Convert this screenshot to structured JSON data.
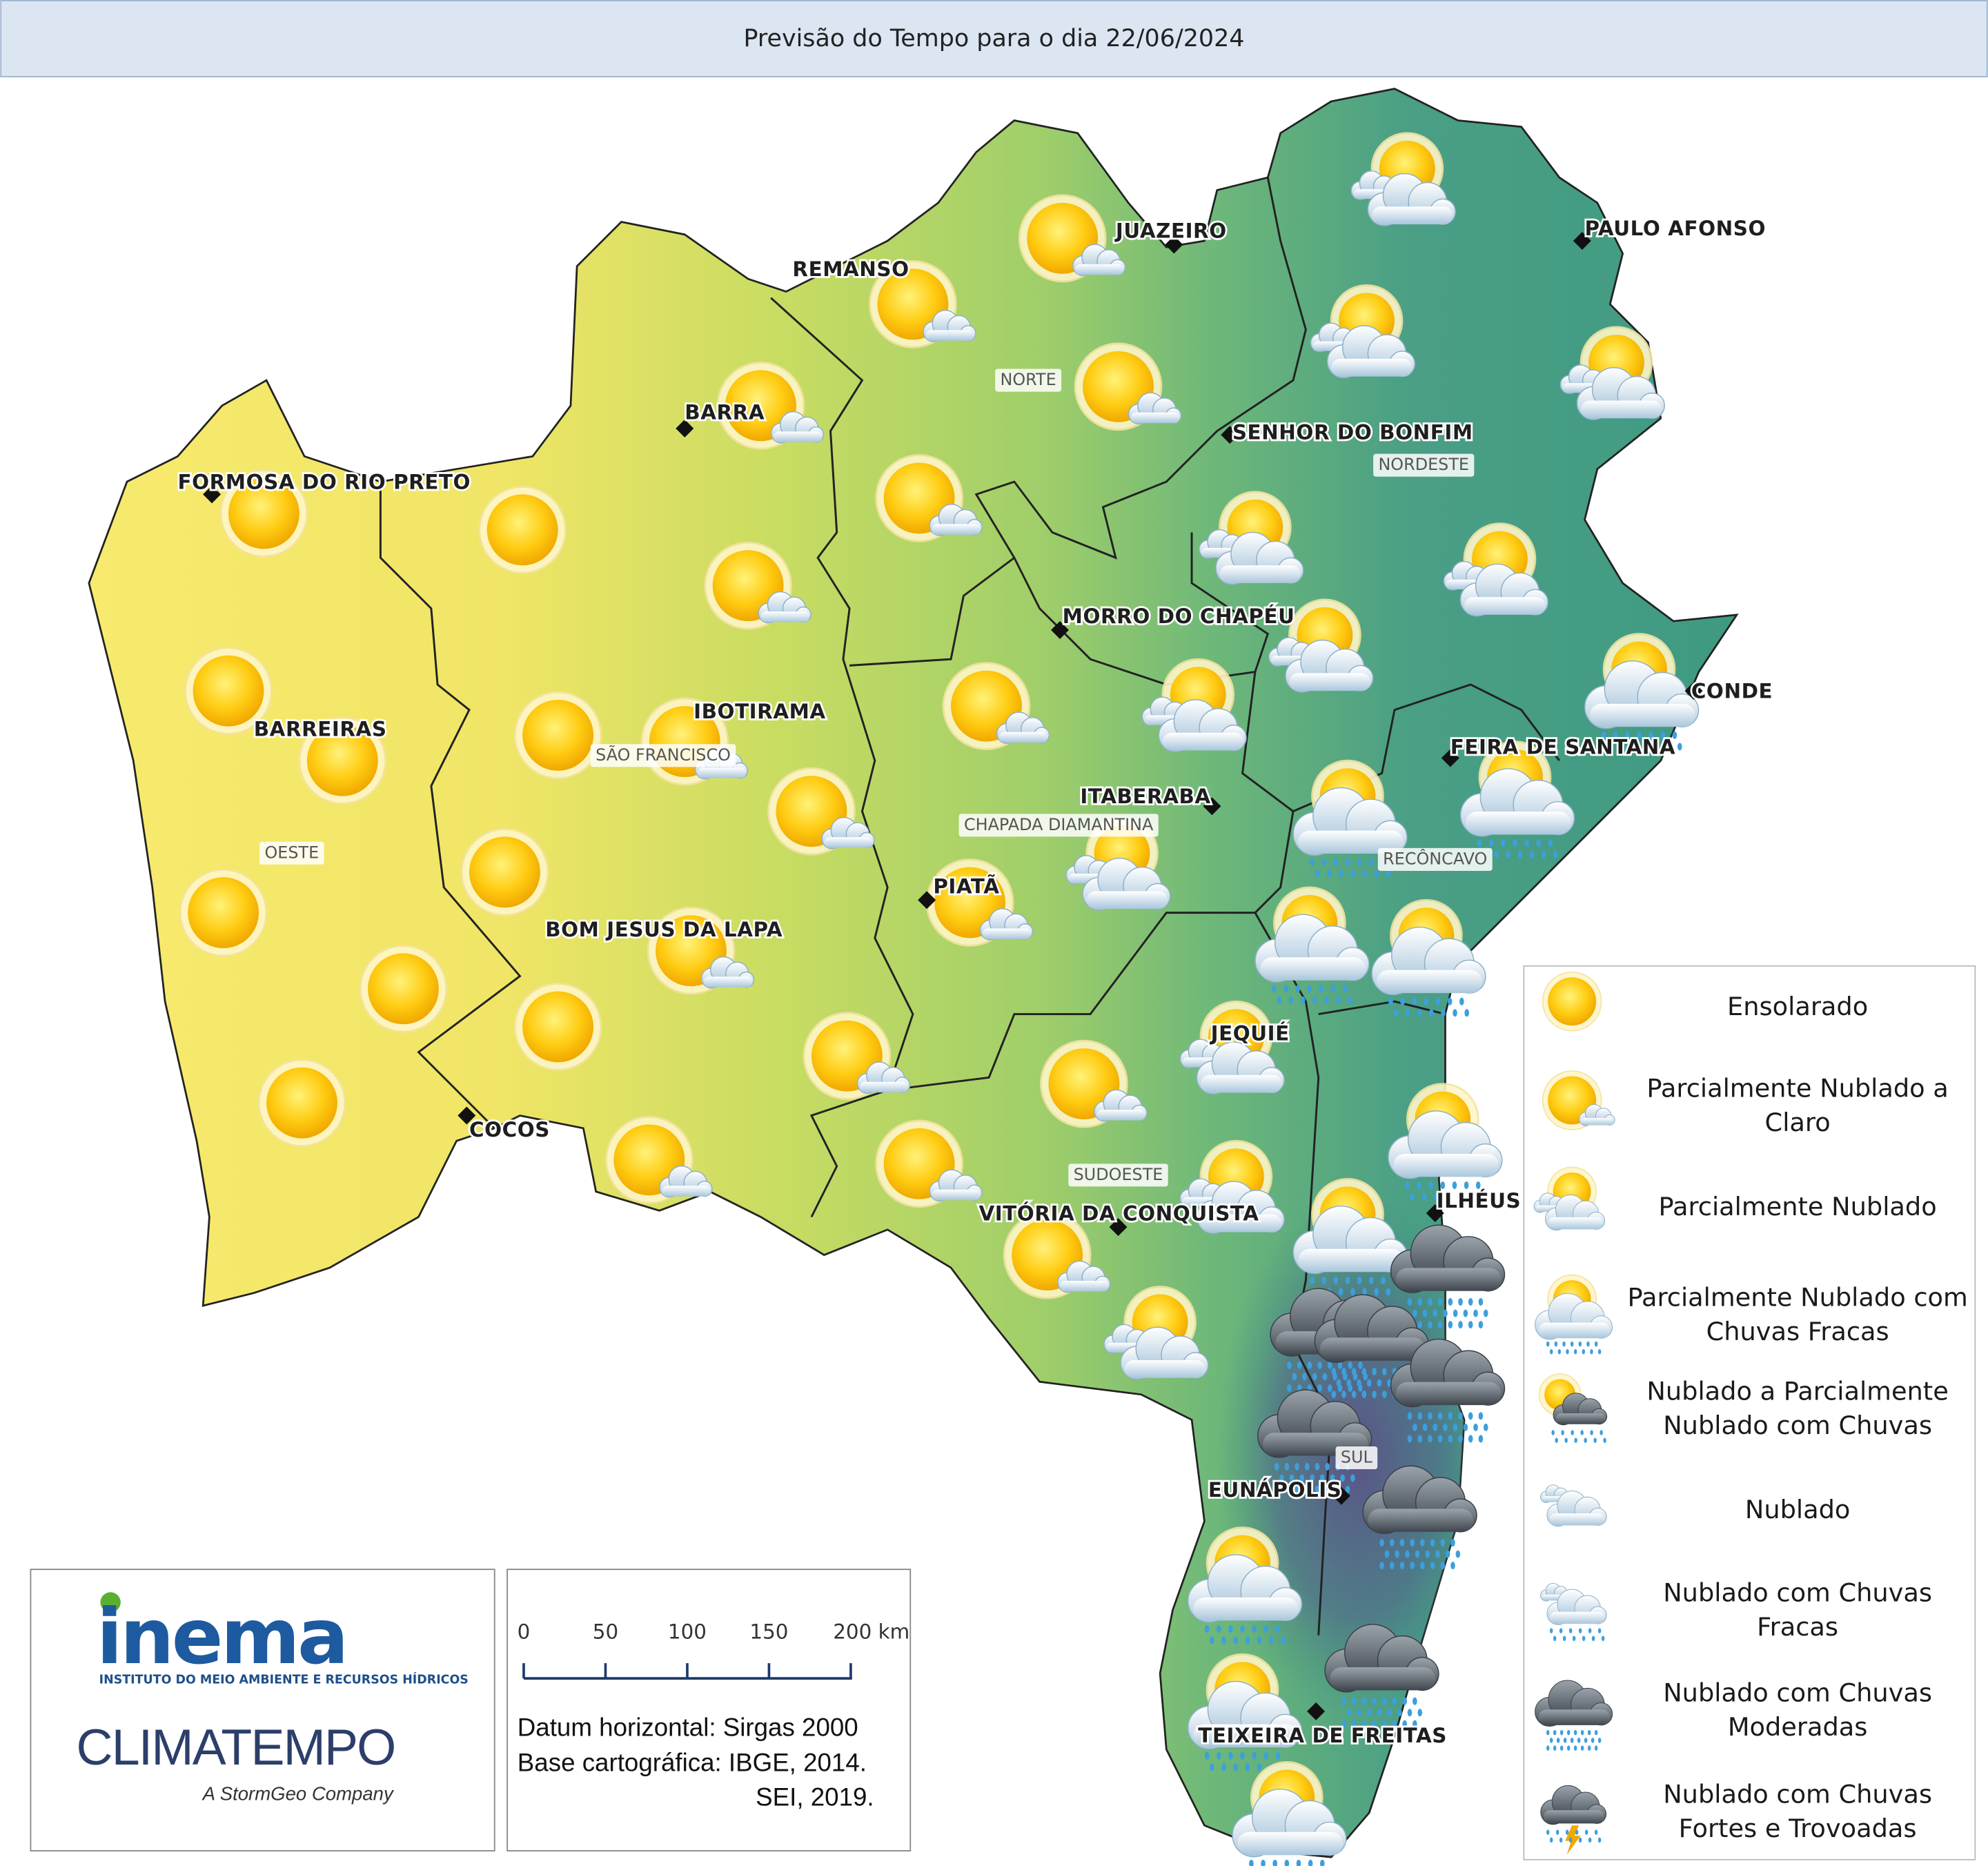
{
  "header": {
    "title": "Previsão do Tempo para o dia 22/06/2024"
  },
  "cities": [
    "FORMOSA DO RIO PRETO",
    "BARRA",
    "REMANSO",
    "JUAZEIRO",
    "PAULO AFONSO",
    "SENHOR DO BONFIM",
    "MORRO DO CHAPÉU",
    "IBOTIRAMA",
    "BARREIRAS",
    "ITABERABA",
    "FEIRA DE SANTANA",
    "CONDE",
    "PIATÃ",
    "BOM JESUS DA LAPA",
    "JEQUIÉ",
    "COCOS",
    "ILHÉUS",
    "VITÓRIA DA CONQUISTA",
    "EUNÁPOLIS",
    "TEIXEIRA DE FREITAS"
  ],
  "regions": [
    "NORTE",
    "NORDESTE",
    "OESTE",
    "SÃO FRANCISCO",
    "CHAPADA DIAMANTINA",
    "RECÔNCAVO",
    "SUDOESTE",
    "SUL"
  ],
  "legend": [
    [
      "Ensolarado"
    ],
    [
      "Parcialmente Nublado a",
      "Claro"
    ],
    [
      "Parcialmente Nublado"
    ],
    [
      "Parcialmente Nublado com",
      "Chuvas Fracas"
    ],
    [
      "Nublado a Parcialmente",
      "Nublado com Chuvas"
    ],
    [
      "Nublado"
    ],
    [
      "Nublado com Chuvas",
      "Fracas"
    ],
    [
      "Nublado com Chuvas",
      "Moderadas"
    ],
    [
      "Nublado com Chuvas",
      "Fortes e Trovoadas"
    ]
  ],
  "scale_bar": {
    "labels": [
      "0",
      "50",
      "100",
      "150",
      "200 km"
    ]
  },
  "credits": [
    "Datum horizontal: Sirgas 2000",
    "Base cartográfica: IBGE, 2014.",
    "SEI, 2019."
  ],
  "logos": {
    "inema": "inema",
    "inema_subtitle": "INSTITUTO DO MEIO AMBIENTE E RECURSOS HÍDRICOS",
    "climatempo": "CLIMATEMPO",
    "climatempo_subtitle": "A StormGeo Company"
  }
}
